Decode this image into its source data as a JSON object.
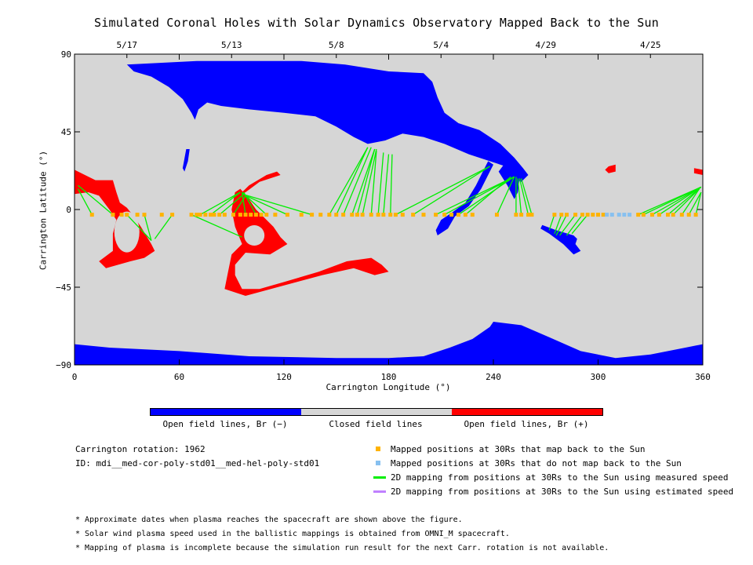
{
  "chart_data": {
    "type": "scatter",
    "title": "Simulated Coronal Holes with Solar Dynamics Observatory Mapped Back to the Sun",
    "xlabel": "Carrington Longitude (°)",
    "ylabel": "Carrington Latitude (°)",
    "xlim": [
      0,
      360
    ],
    "ylim": [
      -90,
      90
    ],
    "x_ticks": [
      "0",
      "60",
      "120",
      "180",
      "240",
      "300",
      "360"
    ],
    "y_ticks": [
      "90",
      "45",
      "0",
      "−45",
      "−90"
    ],
    "top_axis_dates": [
      {
        "label": "5/17",
        "lon": 30
      },
      {
        "label": "5/13",
        "lon": 90
      },
      {
        "label": "5/8",
        "lon": 150
      },
      {
        "label": "5/4",
        "lon": 210
      },
      {
        "label": "4/29",
        "lon": 270
      },
      {
        "label": "4/25",
        "lon": 330
      }
    ],
    "grid": false,
    "background_color": "#d6d6d6",
    "colors": {
      "open_negative": "#0000ff",
      "closed": "#d6d6d6",
      "open_positive": "#ff0000",
      "mapped": "#ffb300",
      "not_mapped": "#87c0f0",
      "measured_line": "#00ee00",
      "estimated_line": "#c080ff"
    },
    "series": [
      {
        "name": "Mapped positions at 30Rs that map back to the Sun",
        "points": [
          [
            10,
            -3
          ],
          [
            22,
            -3
          ],
          [
            27,
            -3
          ],
          [
            30,
            -3
          ],
          [
            36,
            -3
          ],
          [
            40,
            -3
          ],
          [
            50,
            -3
          ],
          [
            56,
            -3
          ],
          [
            67,
            -3
          ],
          [
            70,
            -3
          ],
          [
            72,
            -3
          ],
          [
            75,
            -3
          ],
          [
            78,
            -3
          ],
          [
            80,
            -3
          ],
          [
            83,
            -3
          ],
          [
            86,
            -3
          ],
          [
            91,
            -3
          ],
          [
            95,
            -3
          ],
          [
            98,
            -3
          ],
          [
            101,
            -3
          ],
          [
            104,
            -3
          ],
          [
            107,
            -3
          ],
          [
            110,
            -3
          ],
          [
            115,
            -3
          ],
          [
            122,
            -3
          ],
          [
            130,
            -3
          ],
          [
            136,
            -3
          ],
          [
            141,
            -3
          ],
          [
            146,
            -3
          ],
          [
            150,
            -3
          ],
          [
            154,
            -3
          ],
          [
            159,
            -3
          ],
          [
            162,
            -3
          ],
          [
            165,
            -3
          ],
          [
            170,
            -3
          ],
          [
            174,
            -3
          ],
          [
            177,
            -3
          ],
          [
            181,
            -3
          ],
          [
            184,
            -3
          ],
          [
            188,
            -3
          ],
          [
            194,
            -3
          ],
          [
            200,
            -3
          ],
          [
            207,
            -3
          ],
          [
            212,
            -3
          ],
          [
            216,
            -3
          ],
          [
            220,
            -3
          ],
          [
            224,
            -3
          ],
          [
            228,
            -3
          ],
          [
            242,
            -3
          ],
          [
            253,
            -3
          ],
          [
            256,
            -3
          ],
          [
            260,
            -3
          ],
          [
            262,
            -3
          ],
          [
            275,
            -3
          ],
          [
            279,
            -3
          ],
          [
            282,
            -3
          ],
          [
            287,
            -3
          ],
          [
            291,
            -3
          ],
          [
            294,
            -3
          ],
          [
            297,
            -3
          ],
          [
            300,
            -3
          ],
          [
            303,
            -3
          ],
          [
            323,
            -3
          ],
          [
            326,
            -3
          ],
          [
            331,
            -3
          ],
          [
            335,
            -3
          ],
          [
            340,
            -3
          ],
          [
            343,
            -3
          ],
          [
            348,
            -3
          ],
          [
            352,
            -3
          ],
          [
            356,
            -3
          ]
        ]
      },
      {
        "name": "Mapped positions at 30Rs that do not map back to the Sun",
        "points": [
          [
            305,
            -3
          ],
          [
            308,
            -3
          ],
          [
            312,
            -3
          ],
          [
            315,
            -3
          ],
          [
            318,
            -3
          ]
        ]
      },
      {
        "name": "2D mapping from positions at 30Rs to the Sun using measured speed",
        "segments": [
          [
            10,
            -3,
            2,
            12
          ],
          [
            22,
            -3,
            2,
            14
          ],
          [
            30,
            -3,
            44,
            -18
          ],
          [
            40,
            -3,
            44,
            -18
          ],
          [
            56,
            -3,
            46,
            -17
          ],
          [
            67,
            -3,
            96,
            -16
          ],
          [
            72,
            -3,
            95,
            10
          ],
          [
            78,
            -3,
            95,
            10
          ],
          [
            83,
            -3,
            96,
            8
          ],
          [
            91,
            -3,
            98,
            8
          ],
          [
            98,
            -3,
            96,
            10
          ],
          [
            104,
            -3,
            97,
            10
          ],
          [
            110,
            -3,
            96,
            10
          ],
          [
            122,
            -3,
            96,
            9
          ],
          [
            136,
            -3,
            96,
            9
          ],
          [
            146,
            -3,
            168,
            36
          ],
          [
            150,
            -3,
            168,
            36
          ],
          [
            154,
            -3,
            170,
            36
          ],
          [
            159,
            -3,
            172,
            35
          ],
          [
            162,
            -3,
            172,
            35
          ],
          [
            165,
            -3,
            173,
            35
          ],
          [
            170,
            -3,
            173,
            34
          ],
          [
            174,
            -3,
            177,
            33
          ],
          [
            177,
            -3,
            180,
            32
          ],
          [
            181,
            -3,
            182,
            32
          ],
          [
            184,
            -3,
            238,
            25
          ],
          [
            194,
            -3,
            238,
            25
          ],
          [
            207,
            -3,
            252,
            19
          ],
          [
            212,
            -3,
            252,
            19
          ],
          [
            220,
            -3,
            252,
            19
          ],
          [
            224,
            -3,
            250,
            19
          ],
          [
            242,
            -3,
            252,
            19
          ],
          [
            253,
            -3,
            253,
            19
          ],
          [
            256,
            -3,
            254,
            18
          ],
          [
            260,
            -3,
            255,
            18
          ],
          [
            262,
            -3,
            256,
            18
          ],
          [
            275,
            -3,
            272,
            -12
          ],
          [
            279,
            -3,
            275,
            -14
          ],
          [
            282,
            -3,
            276,
            -15
          ],
          [
            287,
            -3,
            278,
            -15
          ],
          [
            291,
            -3,
            282,
            -15
          ],
          [
            294,
            -3,
            285,
            -14
          ],
          [
            323,
            -3,
            359,
            13
          ],
          [
            326,
            -3,
            359,
            13
          ],
          [
            331,
            -3,
            359,
            13
          ],
          [
            335,
            -3,
            359,
            13
          ],
          [
            340,
            -3,
            359,
            13
          ],
          [
            343,
            -3,
            358,
            12
          ],
          [
            348,
            -3,
            358,
            12
          ],
          [
            352,
            -3,
            359,
            10
          ],
          [
            356,
            -3,
            359,
            10
          ]
        ]
      }
    ],
    "colorbar": {
      "labels": [
        "Open field lines, Br (−)",
        "Closed field lines",
        "Open field lines, Br (+)"
      ]
    }
  },
  "info": {
    "carrington": "Carrington rotation: 1962",
    "id": "ID: mdi__med-cor-poly-std01__med-hel-poly-std01"
  },
  "legend": [
    {
      "label": "Mapped positions at 30Rs that map back to the Sun",
      "kind": "square",
      "color": "#ffb300"
    },
    {
      "label": "Mapped positions at 30Rs that do not map back to the Sun",
      "kind": "square",
      "color": "#87c0f0"
    },
    {
      "label": "2D mapping from positions at 30Rs to the Sun using measured speed",
      "kind": "line",
      "color": "#00ee00"
    },
    {
      "label": "2D mapping from positions at 30Rs to the Sun using estimated speed",
      "kind": "line",
      "color": "#c080ff"
    }
  ],
  "notes": [
    "* Approximate dates when plasma reaches the spacecraft are shown above the figure.",
    "* Solar wind plasma speed used in the ballistic mappings is obtained from OMNI_M spacecraft.",
    "* Mapping of plasma is incomplete because the simulation run result for the next Carr. rotation is not available."
  ]
}
